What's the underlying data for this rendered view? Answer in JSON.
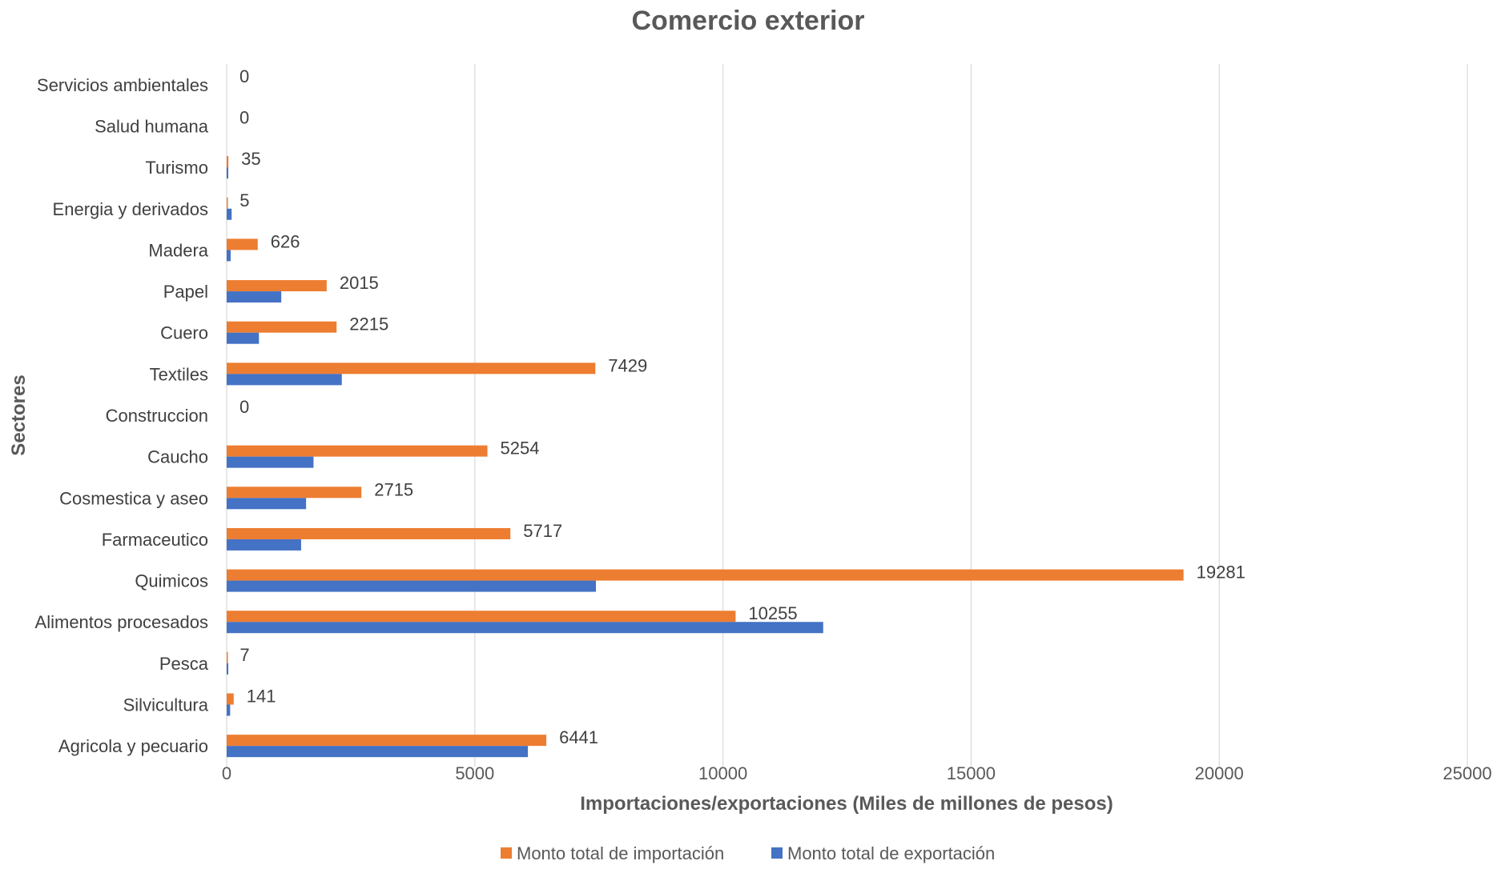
{
  "chart_data": {
    "type": "bar",
    "orientation": "horizontal",
    "title": "Comercio exterior",
    "xlabel": "Importaciones/exportaciones (Miles de millones de pesos)",
    "ylabel": "Sectores",
    "xlim": [
      0,
      25000
    ],
    "xticks": [
      0,
      5000,
      10000,
      15000,
      20000,
      25000
    ],
    "grid": "vertical",
    "legend_position": "bottom",
    "categories": [
      "Servicios ambientales",
      "Salud humana",
      "Turismo",
      "Energia y derivados",
      "Madera",
      "Papel",
      "Cuero",
      "Textiles",
      "Construccion",
      "Caucho",
      "Cosmestica y aseo",
      "Farmaceutico",
      "Quimicos",
      "Alimentos procesados",
      "Pesca",
      "Silvicultura",
      "Agricola y pecuario"
    ],
    "series": [
      {
        "name": "Monto total de importación",
        "color": "#ED7D31",
        "values": [
          0,
          0,
          35,
          5,
          626,
          2015,
          2215,
          7429,
          0,
          5254,
          2715,
          5717,
          19281,
          10255,
          7,
          141,
          6441
        ],
        "data_labels": [
          "0",
          "0",
          "35",
          "5",
          "626",
          "2015",
          "2215",
          "7429",
          "0",
          "5254",
          "2715",
          "5717",
          "19281",
          "10255",
          "7",
          "141",
          "6441"
        ]
      },
      {
        "name": "Monto total de exportación",
        "color": "#4472C4",
        "values": [
          0,
          0,
          30,
          100,
          80,
          1100,
          650,
          2320,
          0,
          1750,
          1600,
          1500,
          7440,
          12020,
          20,
          70,
          6070
        ]
      }
    ]
  }
}
